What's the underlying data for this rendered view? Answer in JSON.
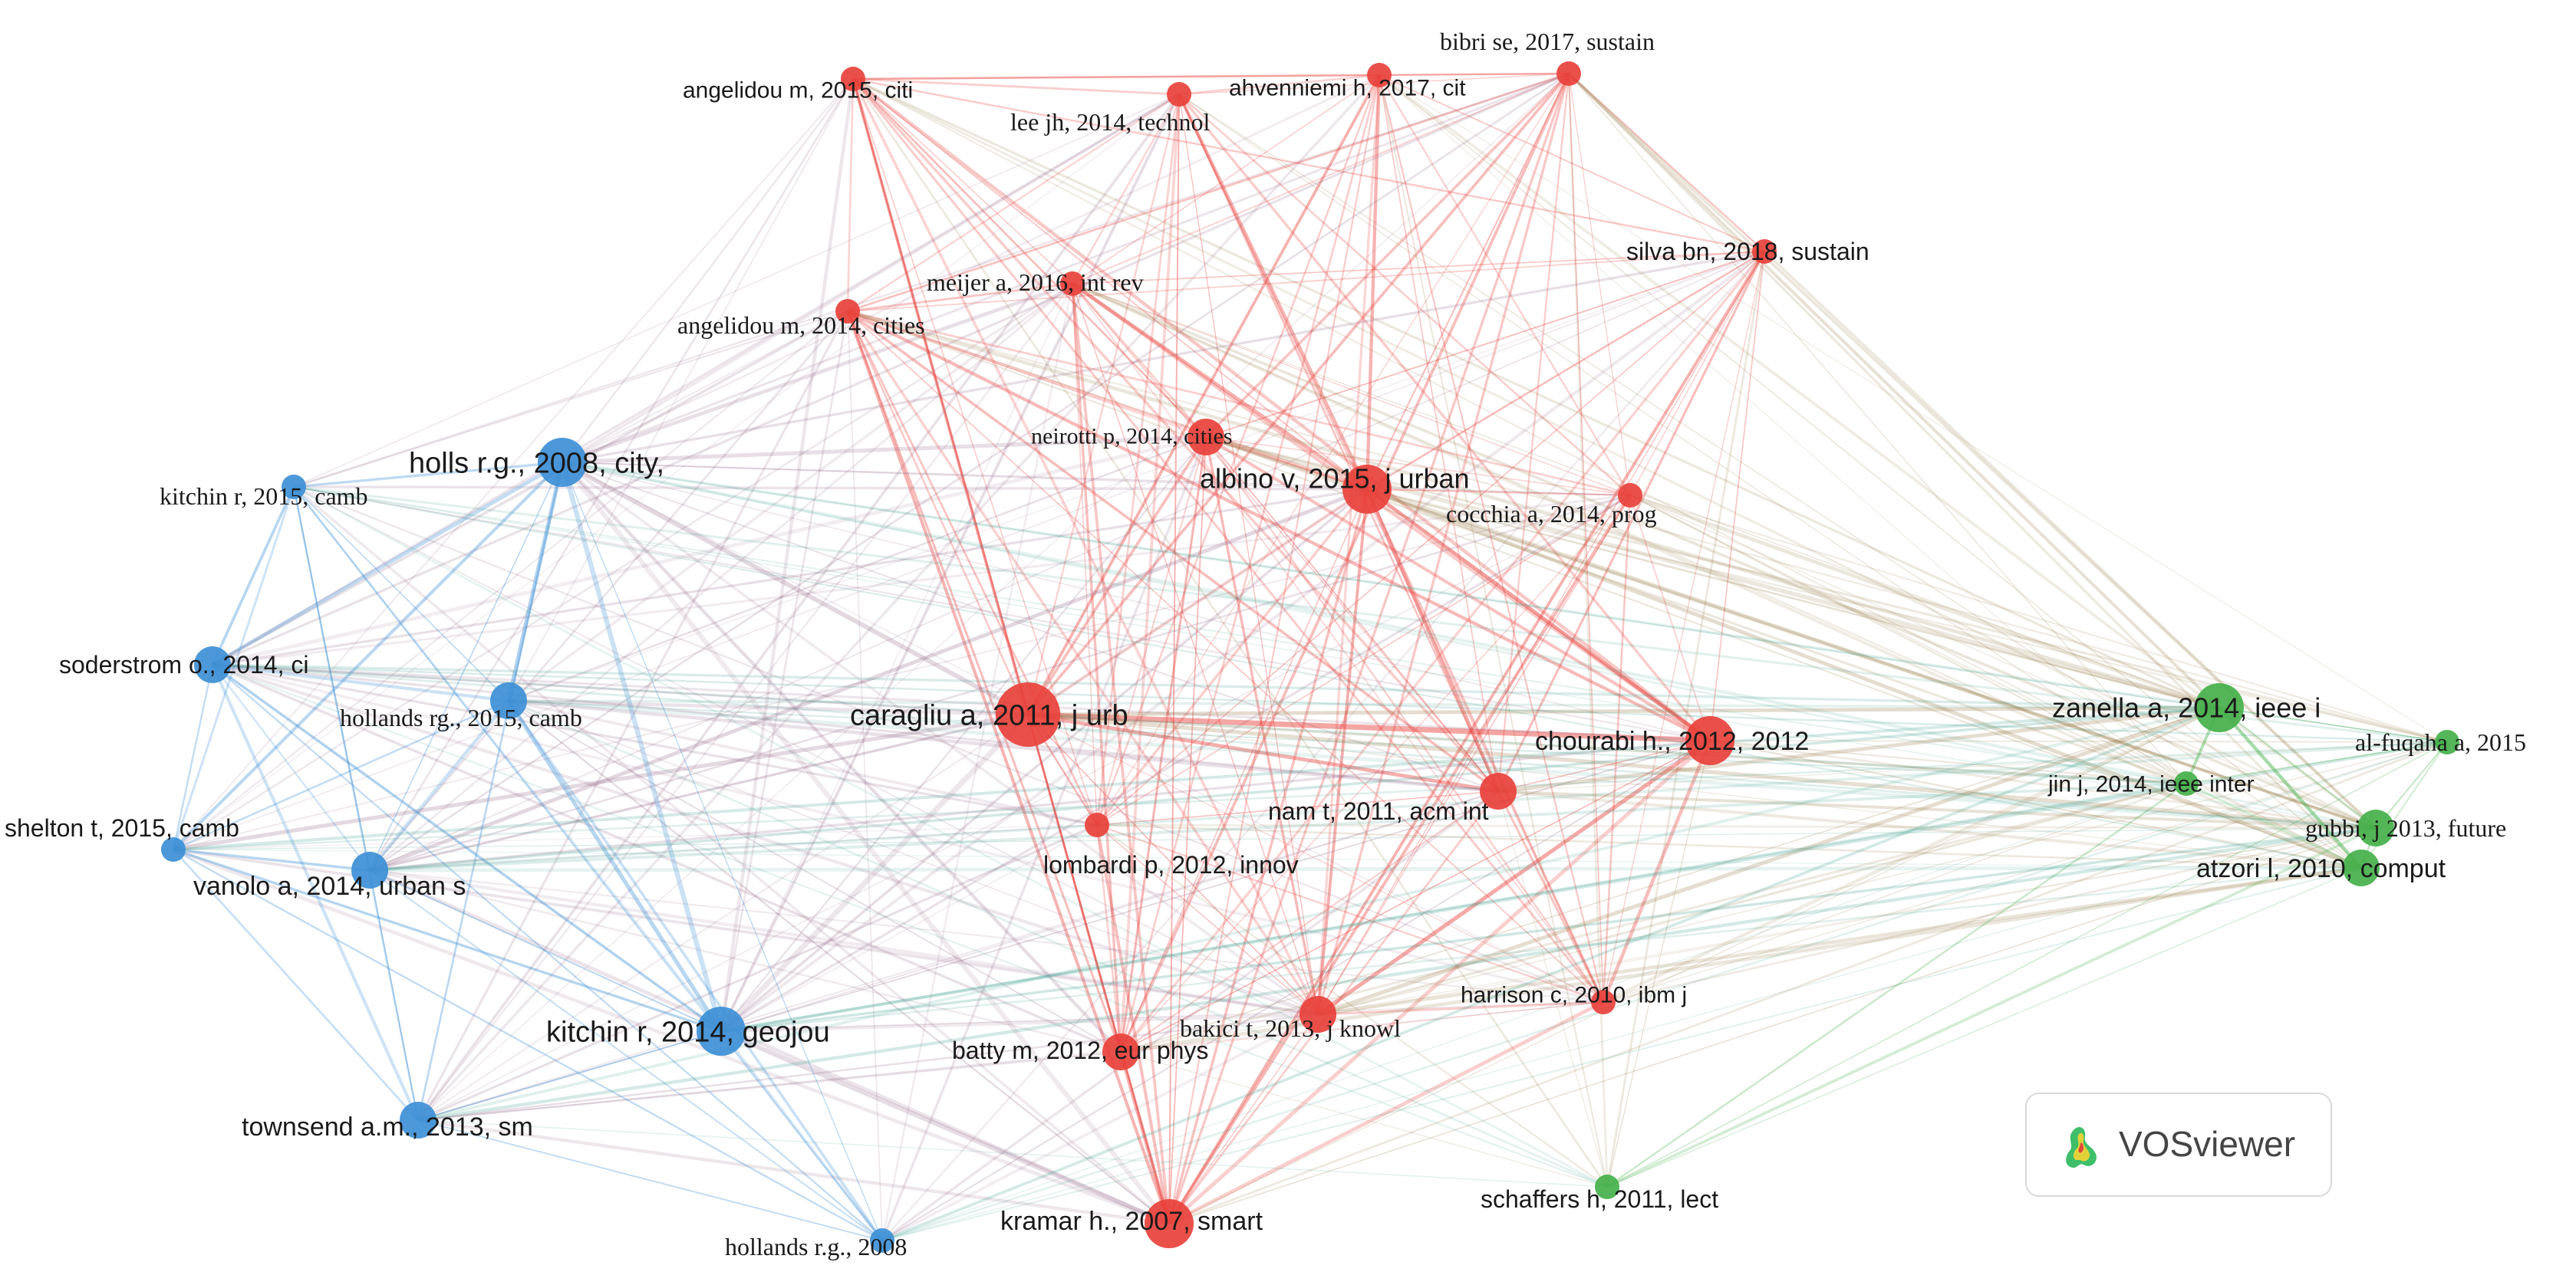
{
  "colors": {
    "red": "#e8413b",
    "blue": "#3d8fd6",
    "green": "#45b04a"
  },
  "nodes": [
    {
      "id": "angelidou2015",
      "label": "angelidou m, 2015, citi",
      "cluster": "red",
      "size": "s",
      "font": "sans"
    },
    {
      "id": "lee2014",
      "label": "lee jh, 2014, technol",
      "cluster": "red",
      "size": "s",
      "font": "serif"
    },
    {
      "id": "ahvenniemi2017",
      "label": "ahvenniemi h, 2017, cit",
      "cluster": "red",
      "size": "s",
      "font": "sans"
    },
    {
      "id": "bibri2017",
      "label": "bibri se, 2017, sustain",
      "cluster": "red",
      "size": "s",
      "font": "serif"
    },
    {
      "id": "silva2018",
      "label": "silva bn, 2018, sustain",
      "cluster": "red",
      "size": "s",
      "font": "sans"
    },
    {
      "id": "meijer2016",
      "label": "meijer a, 2016, int rev",
      "cluster": "red",
      "size": "s",
      "font": "serif"
    },
    {
      "id": "angelidou2014",
      "label": "angelidou m, 2014, cities",
      "cluster": "red",
      "size": "s",
      "font": "serif"
    },
    {
      "id": "neirotti2014",
      "label": "neirotti p, 2014, cities",
      "cluster": "red",
      "size": "m",
      "font": "serif"
    },
    {
      "id": "albino2015",
      "label": "albino v, 2015, j urban",
      "cluster": "red",
      "size": "l",
      "font": "sans"
    },
    {
      "id": "cocchia2014",
      "label": "cocchia a, 2014, prog",
      "cluster": "red",
      "size": "s",
      "font": "serif"
    },
    {
      "id": "caragliu2011",
      "label": "caragliu a, 2011, j urb",
      "cluster": "red",
      "size": "xl",
      "font": "sans"
    },
    {
      "id": "chourabi2012",
      "label": "chourabi h., 2012, 2012",
      "cluster": "red",
      "size": "l",
      "font": "sans"
    },
    {
      "id": "nam2011",
      "label": "nam t, 2011, acm int",
      "cluster": "red",
      "size": "m",
      "font": "sans"
    },
    {
      "id": "lombardi2012",
      "label": "lombardi p, 2012, innov",
      "cluster": "red",
      "size": "s",
      "font": "sans"
    },
    {
      "id": "harrison2010",
      "label": "harrison c, 2010, ibm j",
      "cluster": "red",
      "size": "s",
      "font": "sans"
    },
    {
      "id": "bakici2013",
      "label": "bakici t, 2013, j knowl",
      "cluster": "red",
      "size": "m",
      "font": "serif"
    },
    {
      "id": "batty2012",
      "label": "batty m, 2012, eur phys",
      "cluster": "red",
      "size": "m",
      "font": "sans"
    },
    {
      "id": "kramar2007",
      "label": "kramar h., 2007, smart",
      "cluster": "red",
      "size": "l",
      "font": "sans"
    },
    {
      "id": "holls2008",
      "label": "holls r.g., 2008, city,",
      "cluster": "blue",
      "size": "l",
      "font": "sans"
    },
    {
      "id": "kitchin2015",
      "label": "kitchin r, 2015, camb",
      "cluster": "blue",
      "size": "s",
      "font": "serif"
    },
    {
      "id": "soderstrom2014",
      "label": "soderstrom o., 2014, ci",
      "cluster": "blue",
      "size": "m",
      "font": "sans"
    },
    {
      "id": "hollands2015",
      "label": "hollands rg., 2015, camb",
      "cluster": "blue",
      "size": "m",
      "font": "serif"
    },
    {
      "id": "shelton2015",
      "label": "shelton t, 2015, camb",
      "cluster": "blue",
      "size": "s",
      "font": "sans"
    },
    {
      "id": "vanolo2014",
      "label": "vanolo a, 2014, urban s",
      "cluster": "blue",
      "size": "m",
      "font": "sans"
    },
    {
      "id": "kitchin2014",
      "label": "kitchin r, 2014, geojou",
      "cluster": "blue",
      "size": "l",
      "font": "sans"
    },
    {
      "id": "townsend2013",
      "label": "townsend a.m., 2013, sm",
      "cluster": "blue",
      "size": "m",
      "font": "sans"
    },
    {
      "id": "hollands2008",
      "label": "hollands r.g., 2008",
      "cluster": "blue",
      "size": "s",
      "font": "serif"
    },
    {
      "id": "zanella2014",
      "label": "zanella a, 2014, ieee i",
      "cluster": "green",
      "size": "l",
      "font": "sans"
    },
    {
      "id": "alfuqaha2015",
      "label": "al-fuqaha a, 2015",
      "cluster": "green",
      "size": "s",
      "font": "serif"
    },
    {
      "id": "jin2014",
      "label": "jin j, 2014, ieee inter",
      "cluster": "green",
      "size": "s",
      "font": "sans"
    },
    {
      "id": "gubbi2013",
      "label": "gubbi, j 2013, future",
      "cluster": "green",
      "size": "m",
      "font": "serif"
    },
    {
      "id": "atzori2010",
      "label": "atzori l, 2010, comput",
      "cluster": "green",
      "size": "m",
      "font": "sans"
    },
    {
      "id": "schaffers2011",
      "label": "schaffers h, 2011, lect",
      "cluster": "green",
      "size": "s",
      "font": "sans"
    }
  ],
  "logo": {
    "text": "VOSviewer"
  }
}
